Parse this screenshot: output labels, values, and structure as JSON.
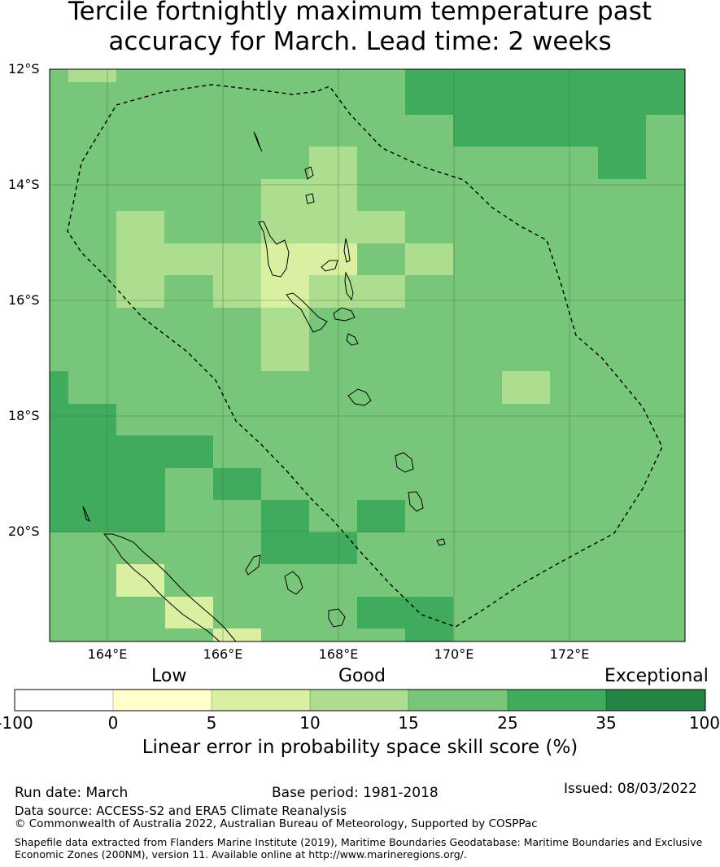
{
  "title_line1": "Tercile fortnightly maximum temperature past",
  "title_line2": "accuracy for March. Lead time: 2 weeks",
  "lat_labels": [
    "12°S",
    "14°S",
    "16°S",
    "18°S",
    "20°S"
  ],
  "lon_labels": [
    "164°E",
    "166°E",
    "168°E",
    "170°E",
    "172°E"
  ],
  "colorbar": {
    "categories": [
      "Low",
      "Good",
      "Exceptional"
    ],
    "ticks": [
      "-100",
      "0",
      "5",
      "10",
      "15",
      "25",
      "35",
      "100"
    ],
    "colors": [
      "#ffffff",
      "#ffffcc",
      "#d9f0a3",
      "#addd8e",
      "#78c679",
      "#41ab5d",
      "#238443"
    ],
    "label": "Linear error in probability space skill score (%)"
  },
  "footer": {
    "run_date": "Run date: March",
    "base_period": "Base period: 1981-2018",
    "issued": "Issued: 08/03/2022",
    "data_source": "Data source: ACCESS-S2 and ERA5 Climate Reanalysis",
    "copyright": "© Commonwealth of Australia 2022, Australian Bureau of Meteorology, Supported by COSPPac",
    "shapefile_1": "Shapefile data extracted from Flanders Marine Institute (2019), Maritime Boundaries Geodatabase: Maritime Boundaries and Exclusive",
    "shapefile_2": "Economic Zones (200NM), version 11. Available online at http://www.marineregions.org/."
  },
  "map_colors": {
    "base": "#78c679",
    "dark": "#41ab5d",
    "light": "#addd8e",
    "lighter": "#d9f0a3"
  }
}
